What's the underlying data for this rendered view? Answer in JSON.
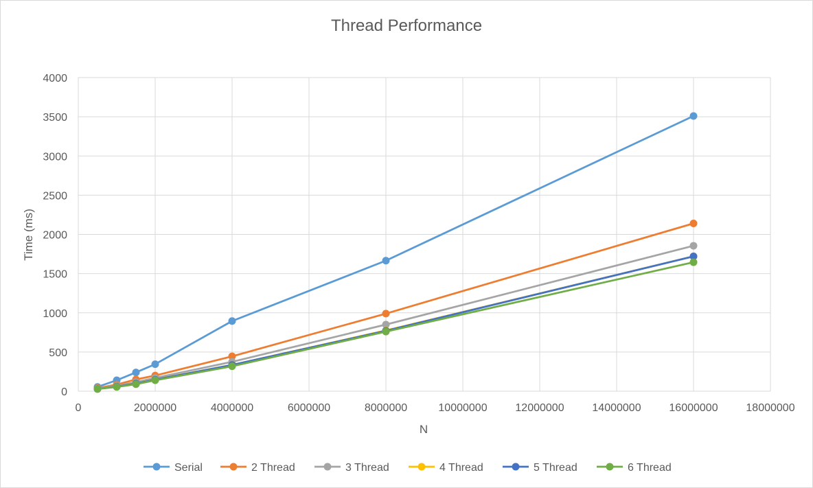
{
  "chart_data": {
    "type": "scatter",
    "title": "Thread Performance",
    "xlabel": "N",
    "ylabel": "Time (ms)",
    "xlim": [
      0,
      18000000
    ],
    "ylim": [
      0,
      4000
    ],
    "x_ticks": [
      0,
      2000000,
      4000000,
      6000000,
      8000000,
      10000000,
      12000000,
      14000000,
      16000000,
      18000000
    ],
    "y_ticks": [
      0,
      500,
      1000,
      1500,
      2000,
      2500,
      3000,
      3500,
      4000
    ],
    "grid": true,
    "legend_position": "bottom",
    "x": [
      500000,
      1000000,
      1500000,
      2000000,
      4000000,
      8000000,
      16000000
    ],
    "series": [
      {
        "name": "Serial",
        "color": "#5b9bd5",
        "values": [
          55,
          140,
          240,
          345,
          895,
          1665,
          3510
        ]
      },
      {
        "name": "2 Thread",
        "color": "#ed7d31",
        "values": [
          40,
          85,
          150,
          200,
          445,
          990,
          2140
        ]
      },
      {
        "name": "3 Thread",
        "color": "#a5a5a5",
        "values": [
          35,
          70,
          115,
          170,
          375,
          850,
          1855
        ]
      },
      {
        "name": "4 Thread",
        "color": "#ffc000",
        "values": [
          30,
          62,
          100,
          150,
          335,
          775,
          1720
        ]
      },
      {
        "name": "5 Thread",
        "color": "#4472c4",
        "values": [
          30,
          60,
          98,
          148,
          335,
          770,
          1720
        ]
      },
      {
        "name": "6 Thread",
        "color": "#70ad47",
        "values": [
          28,
          55,
          90,
          140,
          318,
          760,
          1645
        ]
      }
    ]
  }
}
